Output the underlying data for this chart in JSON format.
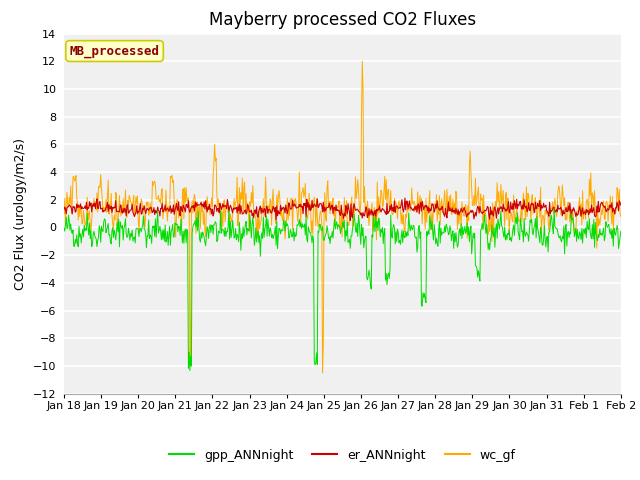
{
  "title": "Mayberry processed CO2 Fluxes",
  "ylabel": "CO2 Flux (urology/m2/s)",
  "ylim": [
    -12,
    14
  ],
  "yticks": [
    -12,
    -10,
    -8,
    -6,
    -4,
    -2,
    0,
    2,
    4,
    6,
    8,
    10,
    12,
    14
  ],
  "xlabel_dates": [
    "Jan 18",
    "Jan 19",
    "Jan 20",
    "Jan 21",
    "Jan 22",
    "Jan 23",
    "Jan 24",
    "Jan 25",
    "Jan 26",
    "Jan 27",
    "Jan 28",
    "Jan 29",
    "Jan 30",
    "Jan 31",
    "Feb 1",
    "Feb 2"
  ],
  "n_points": 744,
  "colors": {
    "gpp": "#00dd00",
    "er": "#cc0000",
    "wc": "#ffaa00",
    "plot_bg_light": "#f0f0f0",
    "plot_bg_dark": "#e0e0e0",
    "fig_bg": "#ffffff",
    "watermark_text": "#8b0000",
    "watermark_bg": "#ffffcc",
    "watermark_edge": "#cccc00"
  },
  "legend_labels": [
    "gpp_ANNnight",
    "er_ANNnight",
    "wc_gf"
  ],
  "watermark": "MB_processed",
  "title_fontsize": 12,
  "axis_fontsize": 9,
  "tick_fontsize": 8,
  "legend_fontsize": 9
}
